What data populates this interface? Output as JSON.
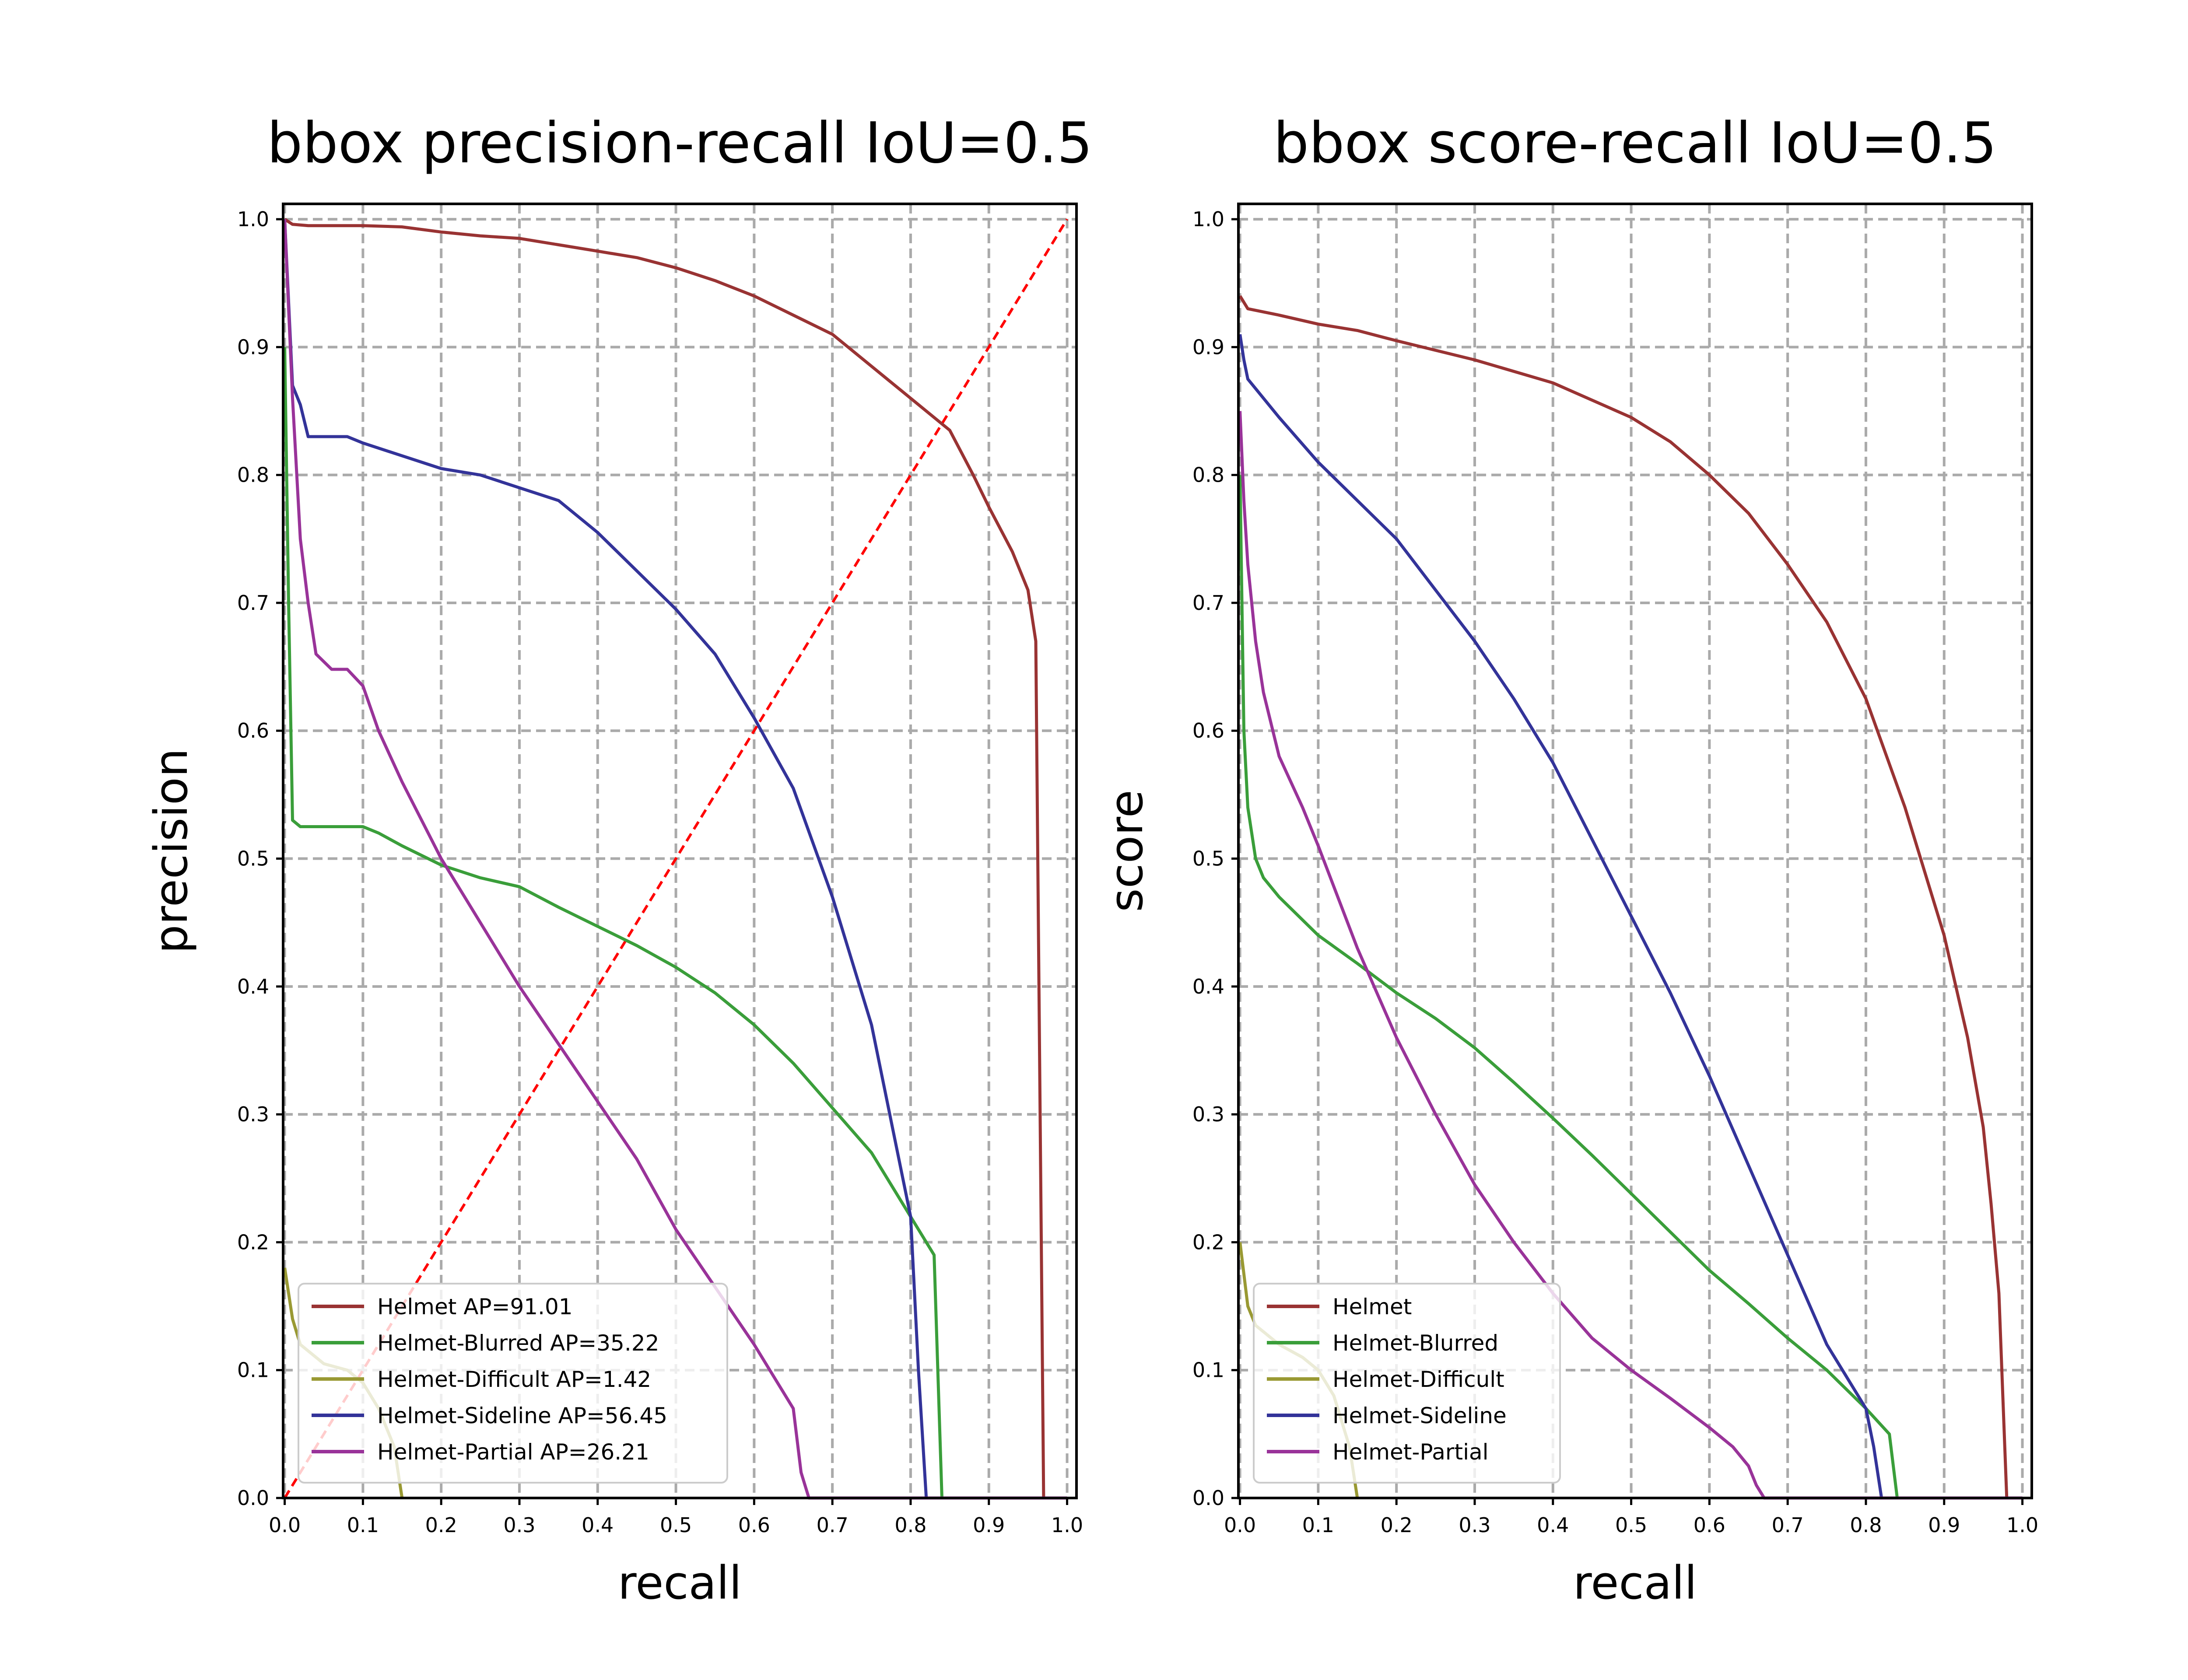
{
  "colors": {
    "Helmet": "#993333",
    "Helmet-Blurred": "#3a9e3a",
    "Helmet-Difficult": "#999933",
    "Helmet-Sideline": "#333399",
    "Helmet-Partial": "#993399",
    "diagonal": "#ff0000",
    "grid": "#aaaaaa"
  },
  "chart_data": [
    {
      "type": "line",
      "title": "bbox precision-recall IoU=0.5",
      "xlabel": "recall",
      "ylabel": "precision",
      "xlim": [
        0,
        1.0
      ],
      "ylim": [
        0,
        1.0
      ],
      "xticks": [
        "0.0",
        "0.1",
        "0.2",
        "0.3",
        "0.4",
        "0.5",
        "0.6",
        "0.7",
        "0.8",
        "0.9",
        "1.0"
      ],
      "yticks": [
        "0.0",
        "0.1",
        "0.2",
        "0.3",
        "0.4",
        "0.5",
        "0.6",
        "0.7",
        "0.8",
        "0.9",
        "1.0"
      ],
      "grid": true,
      "legend_position": "lower-left",
      "diagonal": true,
      "series": [
        {
          "name": "Helmet AP=91.01",
          "key": "Helmet",
          "x": [
            0,
            0.01,
            0.03,
            0.05,
            0.1,
            0.15,
            0.2,
            0.25,
            0.3,
            0.35,
            0.4,
            0.45,
            0.5,
            0.55,
            0.6,
            0.65,
            0.7,
            0.75,
            0.8,
            0.85,
            0.88,
            0.9,
            0.93,
            0.95,
            0.96,
            0.97,
            0.98,
            1.0
          ],
          "y": [
            1.0,
            0.996,
            0.995,
            0.995,
            0.995,
            0.994,
            0.99,
            0.987,
            0.985,
            0.98,
            0.975,
            0.97,
            0.962,
            0.952,
            0.94,
            0.925,
            0.91,
            0.885,
            0.86,
            0.835,
            0.8,
            0.775,
            0.74,
            0.71,
            0.67,
            0.0,
            0.0,
            0.0
          ]
        },
        {
          "name": "Helmet-Blurred AP=35.22",
          "key": "Helmet-Blurred",
          "x": [
            0,
            0.005,
            0.01,
            0.02,
            0.05,
            0.1,
            0.12,
            0.15,
            0.2,
            0.25,
            0.3,
            0.35,
            0.4,
            0.45,
            0.5,
            0.55,
            0.6,
            0.65,
            0.7,
            0.75,
            0.8,
            0.83,
            0.84,
            0.845,
            0.9,
            1.0
          ],
          "y": [
            0.9,
            0.7,
            0.53,
            0.525,
            0.525,
            0.525,
            0.52,
            0.51,
            0.495,
            0.485,
            0.478,
            0.462,
            0.447,
            0.432,
            0.415,
            0.395,
            0.37,
            0.34,
            0.305,
            0.27,
            0.22,
            0.19,
            0.0,
            0.0,
            0.0,
            0.0
          ]
        },
        {
          "name": "Helmet-Difficult AP=1.42",
          "key": "Helmet-Difficult",
          "x": [
            0,
            0.01,
            0.02,
            0.05,
            0.08,
            0.1,
            0.12,
            0.14,
            0.15
          ],
          "y": [
            0.18,
            0.14,
            0.12,
            0.105,
            0.1,
            0.09,
            0.07,
            0.04,
            0.0
          ]
        },
        {
          "name": "Helmet-Sideline AP=56.45",
          "key": "Helmet-Sideline",
          "x": [
            0,
            0.01,
            0.02,
            0.03,
            0.05,
            0.08,
            0.1,
            0.15,
            0.2,
            0.25,
            0.3,
            0.35,
            0.4,
            0.45,
            0.5,
            0.55,
            0.6,
            0.65,
            0.7,
            0.75,
            0.78,
            0.8,
            0.81,
            0.82,
            0.83,
            0.9,
            1.0
          ],
          "y": [
            1.0,
            0.87,
            0.855,
            0.83,
            0.83,
            0.83,
            0.825,
            0.815,
            0.805,
            0.8,
            0.79,
            0.78,
            0.755,
            0.725,
            0.695,
            0.66,
            0.61,
            0.555,
            0.47,
            0.37,
            0.28,
            0.22,
            0.1,
            0.0,
            0.0,
            0.0,
            0.0
          ]
        },
        {
          "name": "Helmet-Partial AP=26.21",
          "key": "Helmet-Partial",
          "x": [
            0,
            0.005,
            0.01,
            0.02,
            0.03,
            0.04,
            0.06,
            0.08,
            0.1,
            0.12,
            0.15,
            0.2,
            0.25,
            0.3,
            0.35,
            0.4,
            0.45,
            0.5,
            0.55,
            0.6,
            0.63,
            0.65,
            0.66,
            0.67,
            0.7,
            0.8,
            0.9,
            1.0
          ],
          "y": [
            1.0,
            0.93,
            0.86,
            0.75,
            0.7,
            0.66,
            0.648,
            0.648,
            0.635,
            0.6,
            0.56,
            0.5,
            0.45,
            0.4,
            0.355,
            0.31,
            0.265,
            0.21,
            0.165,
            0.12,
            0.09,
            0.07,
            0.02,
            0.0,
            0.0,
            0.0,
            0.0,
            0.0
          ]
        }
      ]
    },
    {
      "type": "line",
      "title": "bbox score-recall IoU=0.5",
      "xlabel": "recall",
      "ylabel": "score",
      "xlim": [
        0,
        1.0
      ],
      "ylim": [
        0,
        1.0
      ],
      "xticks": [
        "0.0",
        "0.1",
        "0.2",
        "0.3",
        "0.4",
        "0.5",
        "0.6",
        "0.7",
        "0.8",
        "0.9",
        "1.0"
      ],
      "yticks": [
        "0.0",
        "0.1",
        "0.2",
        "0.3",
        "0.4",
        "0.5",
        "0.6",
        "0.7",
        "0.8",
        "0.9",
        "1.0"
      ],
      "grid": true,
      "legend_position": "lower-left",
      "diagonal": false,
      "series": [
        {
          "name": "Helmet",
          "key": "Helmet",
          "x": [
            0,
            0.01,
            0.05,
            0.1,
            0.15,
            0.2,
            0.3,
            0.4,
            0.5,
            0.55,
            0.6,
            0.65,
            0.7,
            0.75,
            0.8,
            0.85,
            0.9,
            0.93,
            0.95,
            0.96,
            0.97,
            0.975,
            0.98,
            1.0
          ],
          "y": [
            0.94,
            0.93,
            0.925,
            0.918,
            0.913,
            0.905,
            0.89,
            0.872,
            0.845,
            0.826,
            0.8,
            0.77,
            0.73,
            0.685,
            0.625,
            0.54,
            0.44,
            0.36,
            0.29,
            0.23,
            0.16,
            0.08,
            0.0,
            0.0
          ]
        },
        {
          "name": "Helmet-Blurred",
          "key": "Helmet-Blurred",
          "x": [
            0,
            0.005,
            0.01,
            0.02,
            0.03,
            0.05,
            0.1,
            0.15,
            0.2,
            0.25,
            0.3,
            0.35,
            0.4,
            0.45,
            0.5,
            0.55,
            0.6,
            0.65,
            0.7,
            0.75,
            0.8,
            0.83,
            0.84,
            1.0
          ],
          "y": [
            0.8,
            0.6,
            0.54,
            0.5,
            0.485,
            0.47,
            0.44,
            0.418,
            0.395,
            0.375,
            0.352,
            0.325,
            0.297,
            0.268,
            0.238,
            0.208,
            0.178,
            0.152,
            0.125,
            0.1,
            0.07,
            0.05,
            0.0,
            0.0
          ]
        },
        {
          "name": "Helmet-Difficult",
          "key": "Helmet-Difficult",
          "x": [
            0,
            0.01,
            0.02,
            0.05,
            0.08,
            0.1,
            0.12,
            0.14,
            0.15
          ],
          "y": [
            0.2,
            0.15,
            0.135,
            0.12,
            0.11,
            0.1,
            0.08,
            0.04,
            0.0
          ]
        },
        {
          "name": "Helmet-Sideline",
          "key": "Helmet-Sideline",
          "x": [
            0,
            0.005,
            0.01,
            0.05,
            0.1,
            0.15,
            0.2,
            0.25,
            0.3,
            0.35,
            0.4,
            0.45,
            0.5,
            0.55,
            0.6,
            0.65,
            0.7,
            0.75,
            0.8,
            0.81,
            0.82,
            1.0
          ],
          "y": [
            0.91,
            0.89,
            0.875,
            0.845,
            0.81,
            0.78,
            0.75,
            0.71,
            0.67,
            0.625,
            0.575,
            0.515,
            0.455,
            0.395,
            0.33,
            0.26,
            0.19,
            0.12,
            0.07,
            0.04,
            0.0,
            0.0
          ]
        },
        {
          "name": "Helmet-Partial",
          "key": "Helmet-Partial",
          "x": [
            0,
            0.005,
            0.01,
            0.02,
            0.03,
            0.05,
            0.08,
            0.1,
            0.15,
            0.2,
            0.25,
            0.3,
            0.35,
            0.4,
            0.45,
            0.5,
            0.55,
            0.6,
            0.63,
            0.65,
            0.66,
            0.67,
            1.0
          ],
          "y": [
            0.85,
            0.78,
            0.73,
            0.67,
            0.63,
            0.58,
            0.54,
            0.51,
            0.43,
            0.36,
            0.3,
            0.245,
            0.2,
            0.16,
            0.125,
            0.1,
            0.078,
            0.055,
            0.04,
            0.025,
            0.01,
            0.0,
            0.0
          ]
        }
      ]
    }
  ]
}
